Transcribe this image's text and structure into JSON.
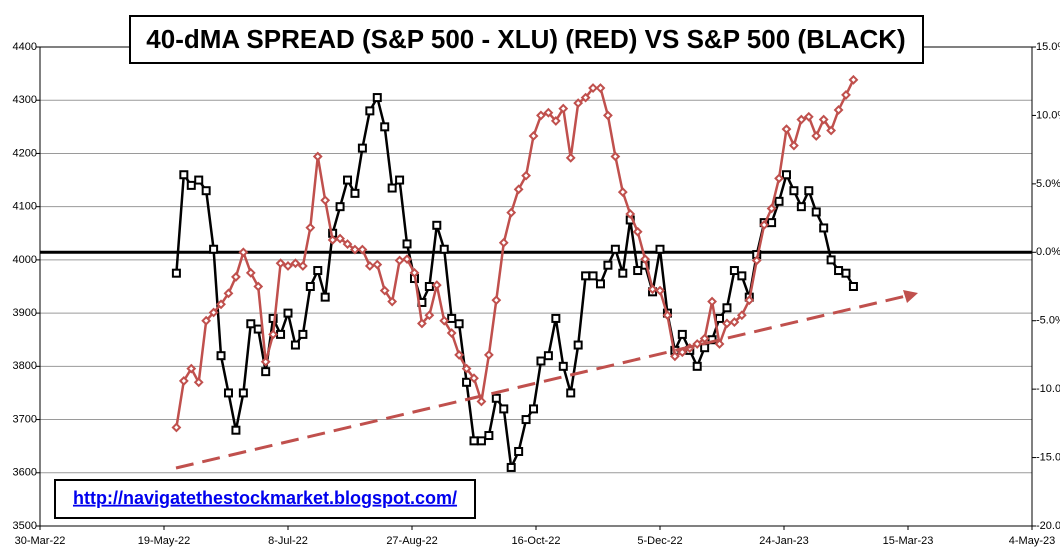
{
  "chart_data": {
    "type": "line",
    "title": "40-dMA SPREAD (S&P 500 - XLU) (RED) VS  S&P 500 (BLACK)",
    "annotation": "http://navigatethestockmarket.blogspot.com/",
    "x": [
      "2022-05-24",
      "2022-05-27",
      "2022-05-30",
      "2022-06-02",
      "2022-06-05",
      "2022-06-08",
      "2022-06-11",
      "2022-06-14",
      "2022-06-17",
      "2022-06-20",
      "2022-06-23",
      "2022-06-26",
      "2022-06-29",
      "2022-07-02",
      "2022-07-05",
      "2022-07-08",
      "2022-07-11",
      "2022-07-14",
      "2022-07-17",
      "2022-07-20",
      "2022-07-23",
      "2022-07-26",
      "2022-07-29",
      "2022-08-01",
      "2022-08-04",
      "2022-08-07",
      "2022-08-10",
      "2022-08-13",
      "2022-08-16",
      "2022-08-19",
      "2022-08-22",
      "2022-08-25",
      "2022-08-28",
      "2022-08-31",
      "2022-09-03",
      "2022-09-06",
      "2022-09-09",
      "2022-09-12",
      "2022-09-15",
      "2022-09-18",
      "2022-09-21",
      "2022-09-24",
      "2022-09-27",
      "2022-09-30",
      "2022-10-03",
      "2022-10-06",
      "2022-10-09",
      "2022-10-12",
      "2022-10-15",
      "2022-10-18",
      "2022-10-21",
      "2022-10-24",
      "2022-10-27",
      "2022-10-30",
      "2022-11-02",
      "2022-11-05",
      "2022-11-08",
      "2022-11-11",
      "2022-11-14",
      "2022-11-17",
      "2022-11-20",
      "2022-11-23",
      "2022-11-26",
      "2022-11-29",
      "2022-12-02",
      "2022-12-05",
      "2022-12-08",
      "2022-12-11",
      "2022-12-14",
      "2022-12-17",
      "2022-12-20",
      "2022-12-23",
      "2022-12-26",
      "2022-12-29",
      "2023-01-01",
      "2023-01-04",
      "2023-01-07",
      "2023-01-10",
      "2023-01-13",
      "2023-01-16",
      "2023-01-19",
      "2023-01-22",
      "2023-01-25",
      "2023-01-28",
      "2023-01-31",
      "2023-02-03",
      "2023-02-06",
      "2023-02-09",
      "2023-02-12",
      "2023-02-15",
      "2023-02-18",
      "2023-02-21"
    ],
    "series": [
      {
        "color": "#000000",
        "marker": "square",
        "axis": "y",
        "values": [
          3975,
          4160,
          4140,
          4150,
          4130,
          4020,
          3820,
          3750,
          3680,
          3750,
          3880,
          3870,
          3790,
          3890,
          3860,
          3900,
          3840,
          3860,
          3950,
          3980,
          3930,
          4050,
          4100,
          4150,
          4125,
          4210,
          4280,
          4305,
          4250,
          4135,
          4150,
          4030,
          3965,
          3920,
          3950,
          4065,
          4020,
          3890,
          3880,
          3770,
          3660,
          3660,
          3670,
          3740,
          3720,
          3610,
          3640,
          3700,
          3720,
          3810,
          3820,
          3890,
          3800,
          3750,
          3840,
          3970,
          3970,
          3955,
          3990,
          4020,
          3975,
          4075,
          3980,
          3990,
          3940,
          4020,
          3900,
          3830,
          3860,
          3830,
          3800,
          3835,
          3850,
          3890,
          3910,
          3980,
          3970,
          3930,
          4010,
          4070,
          4070,
          4110,
          4160,
          4130,
          4100,
          4130,
          4090,
          4060,
          4000,
          3980,
          3975,
          3950
        ]
      },
      {
        "color": "#c0504d",
        "marker": "diamond",
        "axis": "y2",
        "values": [
          -12.8,
          -9.4,
          -8.5,
          -9.5,
          -5.0,
          -4.4,
          -3.8,
          -3.0,
          -1.8,
          0.0,
          -1.5,
          -2.5,
          -8.0,
          -6.0,
          -0.8,
          -1.0,
          -0.8,
          -1.0,
          1.8,
          7.0,
          3.8,
          0.9,
          1.0,
          0.6,
          0.2,
          0.2,
          -1.0,
          -0.9,
          -2.8,
          -3.6,
          -0.6,
          -0.5,
          -1.5,
          -5.2,
          -4.6,
          -2.4,
          -5.0,
          -5.9,
          -7.5,
          -8.5,
          -9.2,
          -10.9,
          -7.5,
          -3.5,
          0.7,
          2.9,
          4.6,
          5.6,
          8.5,
          10.0,
          10.2,
          9.6,
          10.5,
          6.9,
          10.9,
          11.3,
          12.0,
          12.0,
          10.0,
          7.0,
          4.4,
          2.8,
          1.5,
          -0.5,
          -2.7,
          -2.8,
          -4.6,
          -7.6,
          -7.3,
          -7.0,
          -6.7,
          -6.3,
          -3.6,
          -6.7,
          -5.2,
          -5.1,
          -4.6,
          -3.5,
          -0.6,
          2.0,
          3.2,
          5.4,
          9.0,
          7.8,
          9.7,
          9.9,
          8.5,
          9.7,
          8.9,
          10.4,
          11.5,
          12.6
        ]
      }
    ],
    "xlim": [
      "2022-03-30",
      "2023-05-04"
    ],
    "xticks": [
      {
        "value": "2022-03-30",
        "label": "30-Mar-22"
      },
      {
        "value": "2022-05-19",
        "label": "19-May-22"
      },
      {
        "value": "2022-07-08",
        "label": "8-Jul-22"
      },
      {
        "value": "2022-08-27",
        "label": "27-Aug-22"
      },
      {
        "value": "2022-10-16",
        "label": "16-Oct-22"
      },
      {
        "value": "2022-12-05",
        "label": "5-Dec-22"
      },
      {
        "value": "2023-01-24",
        "label": "24-Jan-23"
      },
      {
        "value": "2023-03-15",
        "label": "15-Mar-23"
      },
      {
        "value": "2023-05-04",
        "label": "4-May-23"
      }
    ],
    "ylim": [
      3500,
      4400
    ],
    "yticks": [
      3500,
      3600,
      3700,
      3800,
      3900,
      4000,
      4100,
      4200,
      4300,
      4400
    ],
    "y2lim": [
      -20,
      15
    ],
    "y2ticks": [
      {
        "value": -20,
        "label": "-20.0%"
      },
      {
        "value": -15,
        "label": "-15.0%"
      },
      {
        "value": -10,
        "label": "-10.0%"
      },
      {
        "value": -5,
        "label": "-5.0%"
      },
      {
        "value": 0,
        "label": "0.0%"
      },
      {
        "value": 5,
        "label": "5.0%"
      },
      {
        "value": 10,
        "label": "10.0%"
      },
      {
        "value": 15,
        "label": "15.0%"
      }
    ],
    "y2_reference_line": 0,
    "grid": true
  }
}
